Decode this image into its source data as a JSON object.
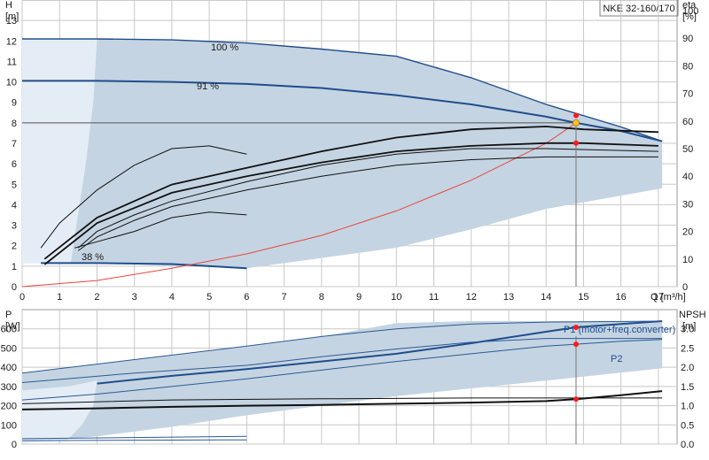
{
  "chart_data": [
    {
      "type": "line",
      "title": "NKE 32-160/170",
      "y_left": {
        "label": "H",
        "unit": "[m]",
        "range": [
          0,
          14
        ],
        "ticks": [
          0,
          1,
          2,
          3,
          4,
          5,
          6,
          7,
          8,
          9,
          10,
          11,
          12,
          13
        ]
      },
      "y_right": {
        "label": "eta",
        "unit": "[%]",
        "range": [
          0,
          100
        ],
        "ticks": [
          0,
          10,
          20,
          30,
          40,
          50,
          60,
          70,
          80,
          90,
          100
        ]
      },
      "x": {
        "label": "Q [m³/h]",
        "range": [
          0,
          17.5
        ],
        "ticks": [
          0,
          1,
          2,
          3,
          4,
          5,
          6,
          7,
          8,
          9,
          10,
          11,
          12,
          13,
          14,
          15,
          16,
          17
        ]
      },
      "grid": true,
      "annotations": [
        "100 %",
        "91 %",
        "38 %"
      ],
      "operating_point": {
        "q": 14.8,
        "h": 8.0,
        "eta_values": [
          62,
          52
        ]
      },
      "series": [
        {
          "name": "100 %",
          "axis": "H",
          "points": [
            [
              0,
              12.1
            ],
            [
              2,
              12.1
            ],
            [
              4,
              12.05
            ],
            [
              6,
              11.9
            ],
            [
              8,
              11.6
            ],
            [
              10,
              11.25
            ],
            [
              12,
              10.2
            ],
            [
              14,
              8.9
            ],
            [
              16,
              7.8
            ],
            [
              17.1,
              7.1
            ]
          ]
        },
        {
          "name": "91 %",
          "axis": "H",
          "points": [
            [
              0,
              10.05
            ],
            [
              2,
              10.05
            ],
            [
              4,
              10.0
            ],
            [
              6,
              9.9
            ],
            [
              8,
              9.7
            ],
            [
              10,
              9.35
            ],
            [
              12,
              8.9
            ],
            [
              14,
              8.3
            ],
            [
              14.8,
              8.0
            ],
            [
              16,
              7.6
            ],
            [
              17.1,
              7.1
            ]
          ]
        },
        {
          "name": "38 %",
          "axis": "H",
          "points": [
            [
              0.5,
              1.15
            ],
            [
              2,
              1.15
            ],
            [
              4,
              1.1
            ],
            [
              6,
              0.9
            ]
          ]
        },
        {
          "axis": "H",
          "points": [
            [
              0,
              0
            ],
            [
              2,
              0.3
            ],
            [
              4,
              0.9
            ],
            [
              6,
              1.6
            ],
            [
              8,
              2.5
            ],
            [
              10,
              3.7
            ],
            [
              12,
              5.2
            ],
            [
              14,
              7.0
            ],
            [
              14.8,
              8.0
            ]
          ]
        },
        {
          "axis": "eta",
          "points": [
            [
              0.6,
              10
            ],
            [
              2,
              25
            ],
            [
              4,
              37
            ],
            [
              6,
              43
            ],
            [
              8,
              49
            ],
            [
              10,
              54
            ],
            [
              12,
              57
            ],
            [
              14,
              58
            ],
            [
              15,
              57
            ],
            [
              17,
              56
            ]
          ]
        },
        {
          "axis": "eta",
          "points": [
            [
              0.6,
              8
            ],
            [
              2,
              23
            ],
            [
              4,
              34
            ],
            [
              6,
              40
            ],
            [
              8,
              45
            ],
            [
              10,
              49
            ],
            [
              12,
              51
            ],
            [
              14,
              52
            ],
            [
              15,
              52
            ],
            [
              17,
              51
            ]
          ]
        },
        {
          "axis": "eta",
          "points": [
            [
              1.5,
              14
            ],
            [
              2,
              20
            ],
            [
              3,
              26
            ],
            [
              4,
              31
            ],
            [
              6,
              38
            ],
            [
              8,
              44
            ],
            [
              10,
              48
            ],
            [
              12,
              50
            ],
            [
              14,
              50
            ],
            [
              17,
              49
            ]
          ]
        },
        {
          "axis": "eta",
          "points": [
            [
              1.5,
              13
            ],
            [
              2,
              18
            ],
            [
              3,
              24
            ],
            [
              4,
              29
            ],
            [
              6,
              35
            ],
            [
              8,
              40
            ],
            [
              10,
              44
            ],
            [
              12,
              46
            ],
            [
              14,
              47
            ],
            [
              17,
              47
            ]
          ]
        },
        {
          "axis": "eta",
          "points": [
            [
              0.5,
              14
            ],
            [
              1,
              23
            ],
            [
              2,
              35
            ],
            [
              3,
              44
            ],
            [
              4,
              50
            ],
            [
              5,
              51
            ],
            [
              6,
              48
            ]
          ]
        },
        {
          "axis": "eta",
          "points": [
            [
              1.4,
              14
            ],
            [
              3,
              20
            ],
            [
              4,
              25
            ],
            [
              5,
              27
            ],
            [
              6,
              26
            ]
          ]
        }
      ]
    },
    {
      "type": "line",
      "y_left": {
        "label": "P",
        "unit": "[W]",
        "range": [
          0,
          700
        ],
        "ticks": [
          0,
          100,
          200,
          300,
          400,
          500,
          600
        ]
      },
      "y_right": {
        "label": "NPSH",
        "unit": "[m]",
        "range": [
          0,
          3.5
        ],
        "ticks": [
          "0.0",
          "0.5",
          "1.0",
          "1.5",
          "2.0",
          "2.5",
          "3.0"
        ]
      },
      "x": {
        "range": [
          0,
          17.5
        ],
        "ticks": [
          0,
          1,
          2,
          3,
          4,
          5,
          6,
          7,
          8,
          9,
          10,
          11,
          12,
          13,
          14,
          15,
          16,
          17
        ]
      },
      "grid": true,
      "series": [
        {
          "name": "P1 (motor+freq.converter)",
          "axis": "P",
          "points": [
            [
              2,
              315
            ],
            [
              4,
              355
            ],
            [
              6,
              390
            ],
            [
              8,
              430
            ],
            [
              10,
              470
            ],
            [
              12,
              525
            ],
            [
              14,
              585
            ],
            [
              14.8,
              608
            ],
            [
              16,
              625
            ],
            [
              17.1,
              640
            ]
          ]
        },
        {
          "name": "P2",
          "axis": "P",
          "points": [
            [
              0,
              230
            ],
            [
              2,
              260
            ],
            [
              4,
              300
            ],
            [
              6,
              340
            ],
            [
              8,
              385
            ],
            [
              10,
              430
            ],
            [
              12,
              470
            ],
            [
              14,
              510
            ],
            [
              14.8,
              520
            ],
            [
              16,
              535
            ],
            [
              17.1,
              545
            ]
          ]
        },
        {
          "axis": "P",
          "points": [
            [
              0,
              320
            ],
            [
              3,
              370
            ],
            [
              6,
              410
            ],
            [
              8,
              455
            ],
            [
              10,
              495
            ],
            [
              12,
              530
            ],
            [
              14,
              550
            ],
            [
              17.1,
              550
            ]
          ]
        },
        {
          "axis": "P",
          "points": [
            [
              0,
              370
            ],
            [
              3,
              440
            ],
            [
              6,
              510
            ],
            [
              8,
              560
            ],
            [
              10,
              600
            ],
            [
              12,
              625
            ],
            [
              14,
              635
            ],
            [
              17.1,
              640
            ]
          ]
        },
        {
          "axis": "P",
          "points": [
            [
              0,
              28
            ],
            [
              6,
              40
            ]
          ]
        },
        {
          "axis": "P",
          "points": [
            [
              0,
              18
            ],
            [
              6,
              22
            ]
          ]
        },
        {
          "axis": "NPSH",
          "points": [
            [
              0,
              0.9
            ],
            [
              2,
              0.93
            ],
            [
              4,
              0.97
            ],
            [
              6,
              1.0
            ],
            [
              8,
              1.02
            ],
            [
              10,
              1.05
            ],
            [
              12,
              1.08
            ],
            [
              14,
              1.12
            ],
            [
              14.8,
              1.17
            ],
            [
              16,
              1.27
            ],
            [
              17.1,
              1.38
            ]
          ]
        },
        {
          "axis": "NPSH",
          "points": [
            [
              0,
              1.05
            ],
            [
              4,
              1.15
            ],
            [
              8,
              1.18
            ],
            [
              12,
              1.2
            ],
            [
              17.1,
              1.2
            ]
          ]
        }
      ]
    }
  ],
  "colors": {
    "curve_blue": "#1f4e8c",
    "thin_blue": "#2b5a94",
    "envelope": "#c5d4e2",
    "system_curve": "#e8463c",
    "point": "#ff1a1a",
    "op_point": "#ffc21a",
    "black": "#111111"
  }
}
